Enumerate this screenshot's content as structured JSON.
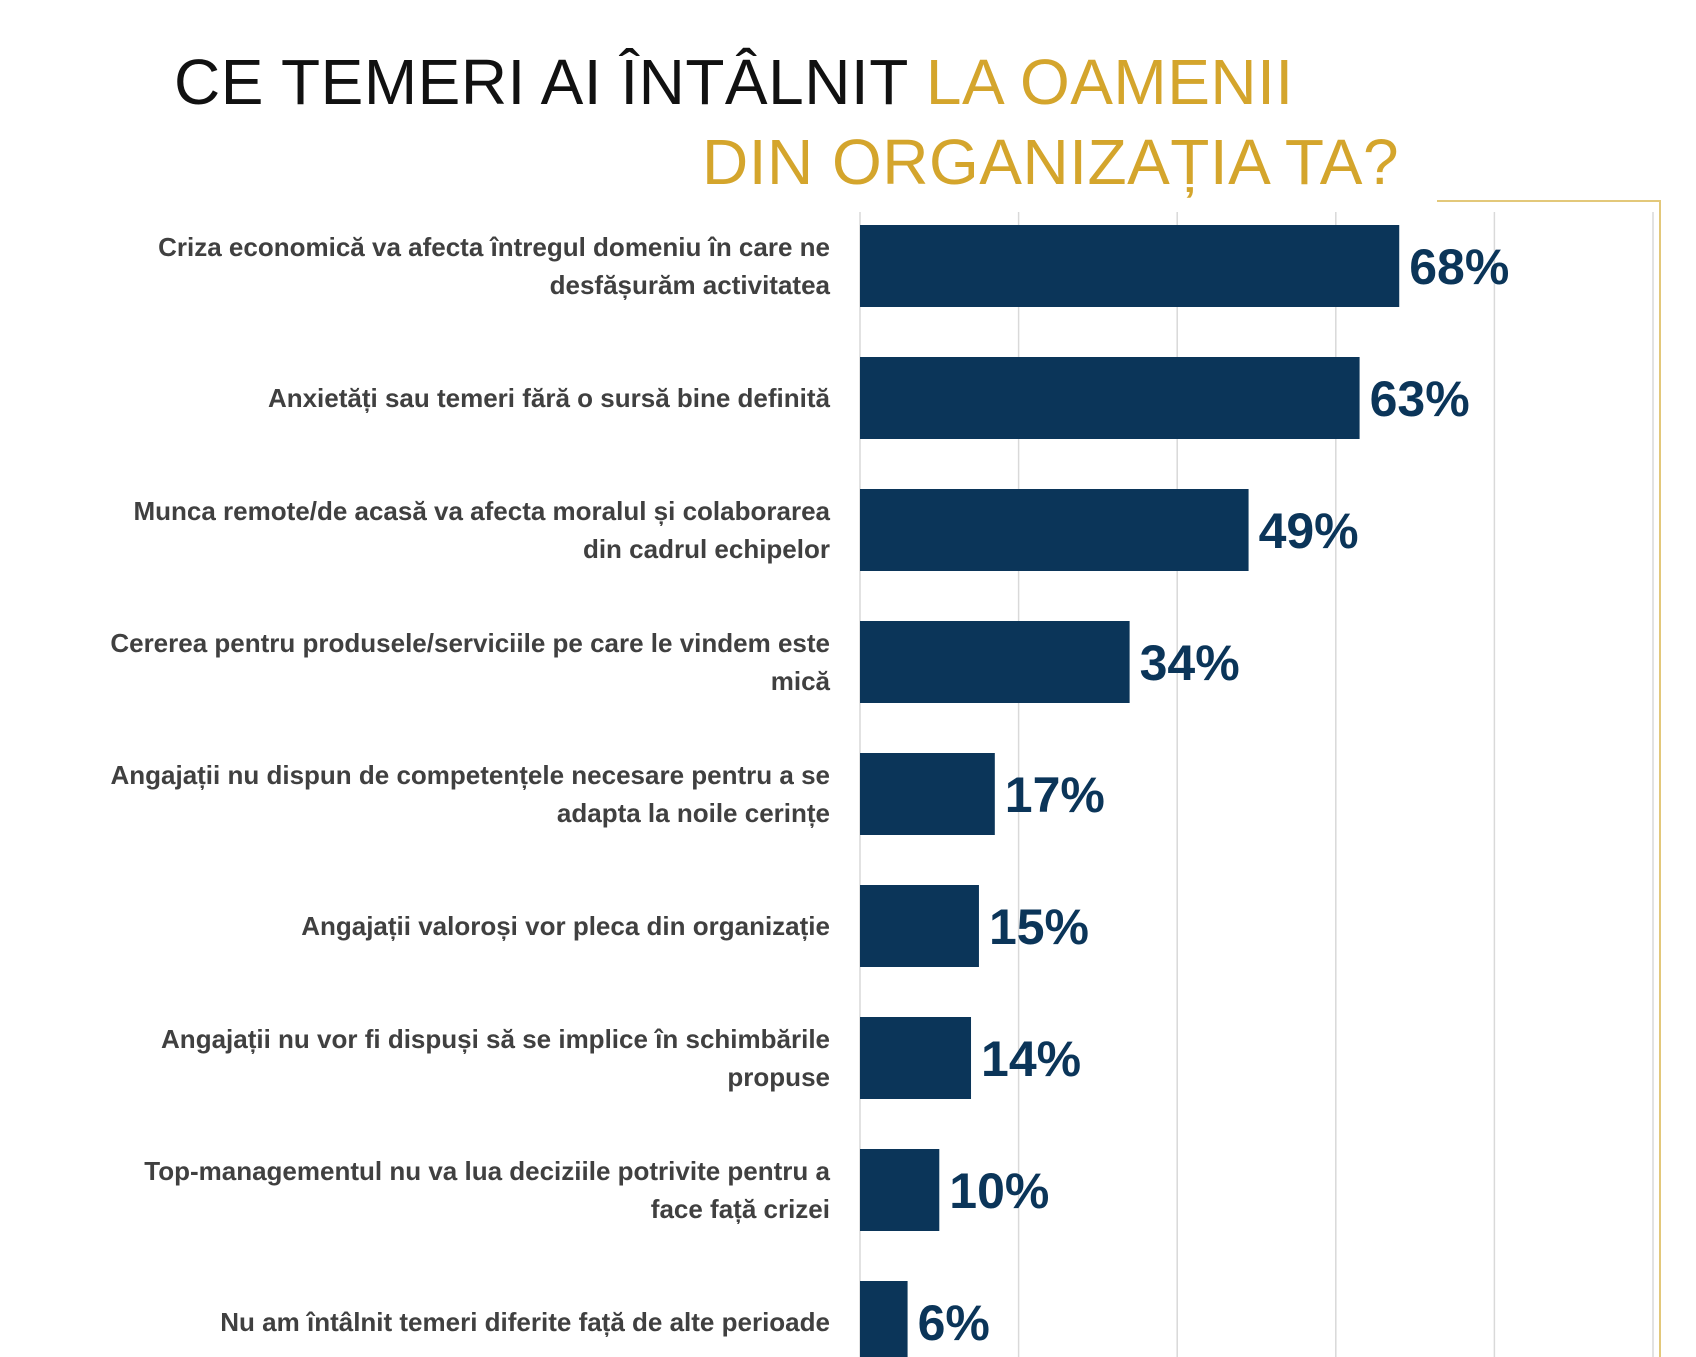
{
  "title": {
    "line1_dark": "CE TEMERI AI ÎNTÂLNIT",
    "line1_gold": "LA OAMENII",
    "line2_gold": "DIN ORGANIZAȚIA TA?"
  },
  "colors": {
    "bar": "#0b3559",
    "title_dark": "#111111",
    "title_accent": "#d4a52c",
    "category_text": "#404040",
    "gridline": "#d9d9d9",
    "frame": "#e3c87a"
  },
  "chart_data": {
    "type": "bar",
    "orientation": "horizontal",
    "categories": [
      [
        "Criza economică va afecta întregul domeniu în care ne",
        "desfășurăm activitatea"
      ],
      [
        "Anxietăți sau temeri fără o sursă bine definită"
      ],
      [
        "Munca remote/de acasă va afecta moralul și colaborarea",
        "din cadrul echipelor"
      ],
      [
        "Cererea pentru produsele/serviciile pe care le vindem este",
        "mică"
      ],
      [
        "Angajații nu dispun de competențele necesare pentru a se",
        "adapta la noile cerințe"
      ],
      [
        "Angajații valoroși vor pleca din organizație"
      ],
      [
        "Angajații nu vor fi dispuși să se implice în schimbările",
        "propuse"
      ],
      [
        "Top-managementul nu va lua deciziile potrivite pentru a",
        "face față crizei"
      ],
      [
        "Nu am întâlnit temeri diferite față de alte perioade"
      ]
    ],
    "values": [
      68,
      63,
      49,
      34,
      17,
      15,
      14,
      10,
      6
    ],
    "value_labels": [
      "68%",
      "63%",
      "49%",
      "34%",
      "17%",
      "15%",
      "14%",
      "10%",
      "6%"
    ],
    "xlim": [
      0,
      100
    ],
    "grid": true,
    "legend": "none"
  }
}
